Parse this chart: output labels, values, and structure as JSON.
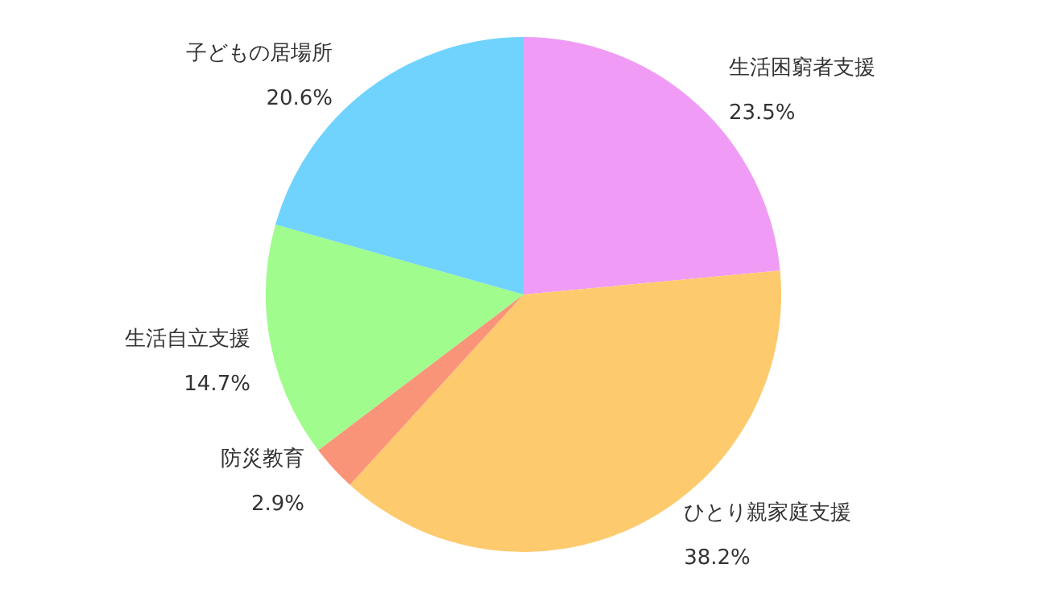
{
  "chart_data": {
    "type": "pie",
    "categories": [
      "生活困窮者支援",
      "ひとり親家庭支援",
      "防災教育",
      "生活自立支援",
      "子どもの居場所"
    ],
    "values": [
      23.5,
      38.2,
      2.9,
      14.7,
      20.6
    ],
    "colors": [
      "#f09cf6",
      "#fdca6e",
      "#fa9479",
      "#a0fc8c",
      "#6fd3fe"
    ],
    "value_labels": [
      "23.5%",
      "38.2%",
      "2.9%",
      "14.7%",
      "20.6%"
    ],
    "legend": false
  }
}
